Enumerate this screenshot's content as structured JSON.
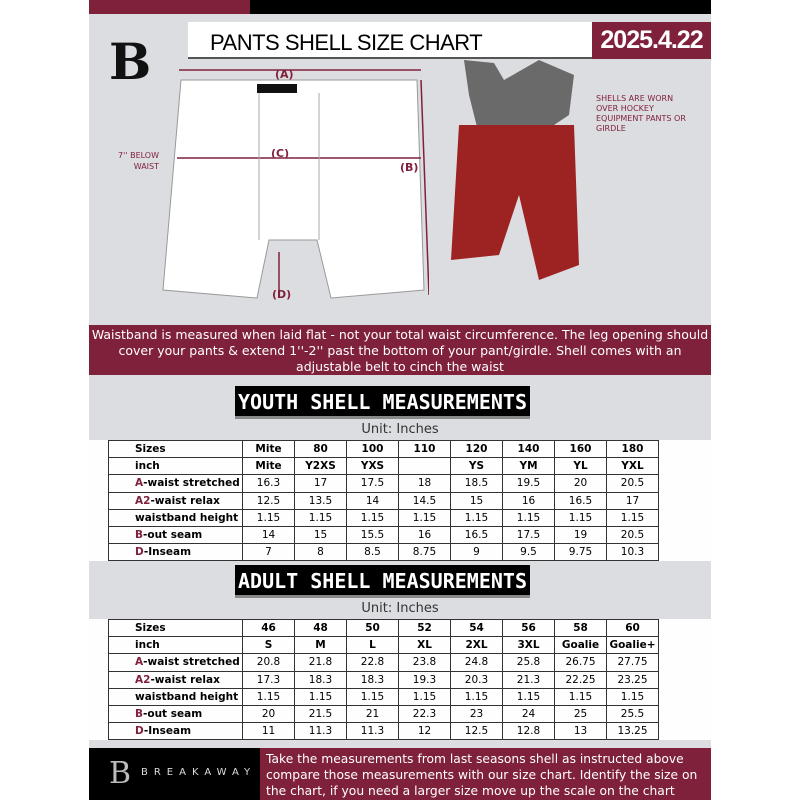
{
  "header": {
    "title": "PANTS SHELL SIZE CHART",
    "date": "2025.4.22",
    "logo": "B"
  },
  "diagram": {
    "label_a": "(A)",
    "label_b": "(B)",
    "label_c": "(C)",
    "label_d": "(D)",
    "below_waist": "7'' BELOW WAIST",
    "note": "SHELLS ARE WORN OVER HOCKEY EQUIPMENT PANTS OR GIRDLE"
  },
  "banner": "Waistband is measured when laid flat - not your total waist circumference. The leg opening should cover your pants & extend 1''-2'' past the bottom of your pant/girdle. Shell comes with an adjustable belt to cinch the waist",
  "youth": {
    "title": "YOUTH SHELL MEASUREMENTS",
    "unit": "Unit: Inches",
    "rows": [
      [
        "Sizes",
        "Mite",
        "80",
        "100",
        "110",
        "120",
        "140",
        "160",
        "180"
      ],
      [
        "inch",
        "Mite",
        "Y2XS",
        "YXS",
        "",
        "YS",
        "YM",
        "YL",
        "YXL"
      ],
      [
        "A-waist stretched",
        "16.3",
        "17",
        "17.5",
        "18",
        "18.5",
        "19.5",
        "20",
        "20.5"
      ],
      [
        "A2-waist relax",
        "12.5",
        "13.5",
        "14",
        "14.5",
        "15",
        "16",
        "16.5",
        "17"
      ],
      [
        "waistband height",
        "1.15",
        "1.15",
        "1.15",
        "1.15",
        "1.15",
        "1.15",
        "1.15",
        "1.15"
      ],
      [
        "B-out seam",
        "14",
        "15",
        "15.5",
        "16",
        "16.5",
        "17.5",
        "19",
        "20.5"
      ],
      [
        "D-Inseam",
        "7",
        "8",
        "8.5",
        "8.75",
        "9",
        "9.5",
        "9.75",
        "10.3"
      ]
    ]
  },
  "adult": {
    "title": "ADULT SHELL MEASUREMENTS",
    "unit": "Unit: Inches",
    "rows": [
      [
        "Sizes",
        "46",
        "48",
        "50",
        "52",
        "54",
        "56",
        "58",
        "60"
      ],
      [
        "inch",
        "S",
        "M",
        "L",
        "XL",
        "2XL",
        "3XL",
        "Goalie",
        "Goalie+"
      ],
      [
        "A-waist stretched",
        "20.8",
        "21.8",
        "22.8",
        "23.8",
        "24.8",
        "25.8",
        "26.75",
        "27.75"
      ],
      [
        "A2-waist relax",
        "17.3",
        "18.3",
        "18.3",
        "19.3",
        "20.3",
        "21.3",
        "22.25",
        "23.25"
      ],
      [
        "waistband height",
        "1.15",
        "1.15",
        "1.15",
        "1.15",
        "1.15",
        "1.15",
        "1.15",
        "1.15"
      ],
      [
        "B-out seam",
        "20",
        "21.5",
        "21",
        "22.3",
        "23",
        "24",
        "25",
        "25.5"
      ],
      [
        "D-Inseam",
        "11",
        "11.3",
        "11.3",
        "12",
        "12.5",
        "12.8",
        "13",
        "13.25"
      ]
    ]
  },
  "footer": {
    "brand": "BREAKAWAY",
    "logo": "B",
    "text": "Take the measurements from last seasons shell as instructed above compare those measurements  with our size chart. Identify the size on the chart, if you need a larger size move up the scale on the chart"
  },
  "colors": {
    "accent": "#80213c",
    "background": "#dcdde1"
  }
}
